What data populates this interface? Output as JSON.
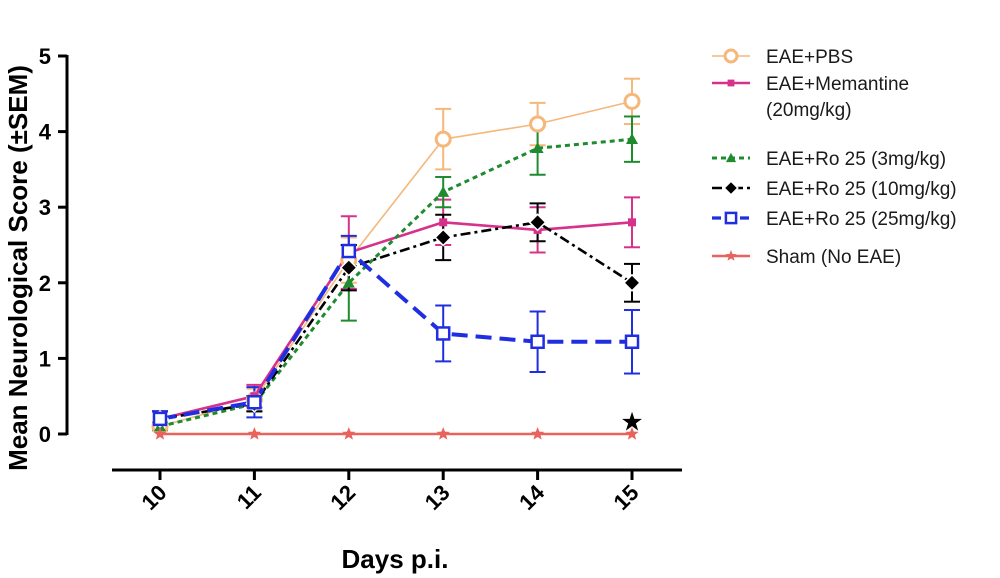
{
  "chart_data": {
    "type": "line",
    "title": "",
    "xlabel": "Days p.i.",
    "ylabel": "Mean Neurological Score (±SEM)",
    "x": [
      10,
      11,
      12,
      13,
      14,
      15
    ],
    "x_tick_labels": [
      "10",
      "11",
      "12",
      "13",
      "14",
      "15"
    ],
    "ylim": [
      0,
      5
    ],
    "y_ticks": [
      0,
      1,
      2,
      3,
      4,
      5
    ],
    "y_tick_labels": [
      "0",
      "1",
      "2",
      "3",
      "4",
      "5"
    ],
    "grid": false,
    "legend_position": "right",
    "series": [
      {
        "name": "EAE+PBS",
        "color": "#f5b77a",
        "marker": "open-circle",
        "line_style": "solid",
        "values": [
          0.1,
          0.45,
          2.3,
          3.9,
          4.1,
          4.4
        ],
        "sem": [
          0.05,
          0.15,
          0.3,
          0.4,
          0.28,
          0.3
        ]
      },
      {
        "name": "EAE+Memantine",
        "name_line2": "(20mg/kg)",
        "color": "#d6318b",
        "marker": "square",
        "line_style": "solid",
        "values": [
          0.2,
          0.5,
          2.4,
          2.8,
          2.7,
          2.8
        ],
        "sem": [
          0.1,
          0.15,
          0.48,
          0.3,
          0.3,
          0.33
        ]
      },
      {
        "name": "EAE+Ro 25 (3mg/kg)",
        "color": "#1e8c2e",
        "marker": "triangle",
        "line_style": "dotted",
        "values": [
          0.1,
          0.4,
          2.0,
          3.2,
          3.78,
          3.9
        ],
        "sem": [
          0.05,
          0.1,
          0.5,
          0.2,
          0.35,
          0.3
        ]
      },
      {
        "name": "EAE+Ro 25 (10mg/kg)",
        "color": "#000000",
        "marker": "diamond",
        "line_style": "dash-dot",
        "values": [
          0.2,
          0.4,
          2.2,
          2.6,
          2.8,
          2.0
        ],
        "sem": [
          0.1,
          0.1,
          0.3,
          0.3,
          0.25,
          0.25
        ]
      },
      {
        "name": "EAE+Ro 25 (25mg/kg)",
        "color": "#1f2ee0",
        "marker": "open-square",
        "line_style": "dashed",
        "values": [
          0.2,
          0.42,
          2.42,
          1.33,
          1.22,
          1.22
        ],
        "sem": [
          0.1,
          0.2,
          0.2,
          0.37,
          0.4,
          0.42
        ]
      },
      {
        "name": "Sham (No EAE)",
        "color": "#e8625e",
        "marker": "star",
        "line_style": "solid",
        "values": [
          0,
          0,
          0,
          0,
          0,
          0
        ],
        "sem": [
          0,
          0,
          0,
          0,
          0,
          0
        ]
      }
    ],
    "annotations": [
      {
        "type": "significance-star",
        "symbol": "★",
        "x": 15,
        "y": 0.18,
        "color": "#000000"
      }
    ]
  }
}
